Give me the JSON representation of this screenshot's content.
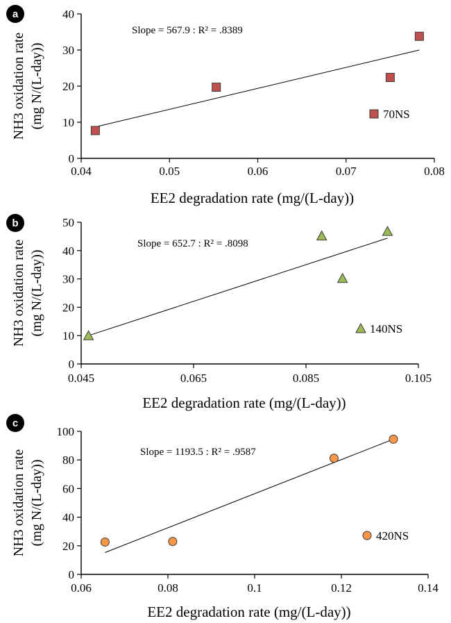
{
  "chart_data": [
    {
      "panel_label": "a",
      "type": "scatter",
      "xlabel": "EE2 degradation rate (mg/(L-day))",
      "ylabel_line1": "NH3 oxidation rate",
      "ylabel_line2": "(mg N/(L-day))",
      "xlim": [
        0.04,
        0.08
      ],
      "ylim": [
        0,
        40
      ],
      "xticks": [
        0.04,
        0.05,
        0.06,
        0.07,
        0.08
      ],
      "xtick_labels": [
        "0.04",
        "0.05",
        "0.06",
        "0.07",
        "0.08"
      ],
      "yticks": [
        0,
        10,
        20,
        30,
        40
      ],
      "ytick_labels": [
        "0",
        "10",
        "20",
        "30",
        "40"
      ],
      "annotation": "Slope = 567.9 : R² = .8389",
      "legend": "70NS",
      "marker": "square",
      "marker_color": "#c0504d",
      "x": [
        0.0416,
        0.0553,
        0.075,
        0.0783
      ],
      "y": [
        7.7,
        19.7,
        22.4,
        33.8
      ],
      "trendline": {
        "x": [
          0.0416,
          0.0783
        ],
        "y": [
          8.7,
          30.0
        ]
      }
    },
    {
      "panel_label": "b",
      "type": "scatter",
      "xlabel": "EE2 degradation rate (mg/(L-day))",
      "ylabel_line1": "NH3 oxidation rate",
      "ylabel_line2": "(mg N/(L-day))",
      "xlim": [
        0.045,
        0.105
      ],
      "ylim": [
        0,
        50
      ],
      "xticks": [
        0.045,
        0.065,
        0.085,
        0.105
      ],
      "xtick_labels": [
        "0.045",
        "0.065",
        "0.085",
        "0.105"
      ],
      "yticks": [
        0,
        10,
        20,
        30,
        40,
        50
      ],
      "ytick_labels": [
        "0",
        "10",
        "20",
        "30",
        "40",
        "50"
      ],
      "annotation": "Slope = 652.7 : R² = .8098",
      "legend": "140NS",
      "marker": "triangle",
      "marker_color": "#9bbb59",
      "x": [
        0.0463,
        0.0878,
        0.0915,
        0.0995
      ],
      "y": [
        10.0,
        45.2,
        30.2,
        46.8
      ],
      "trendline": {
        "x": [
          0.0463,
          0.0995
        ],
        "y": [
          10.0,
          44.4
        ]
      }
    },
    {
      "panel_label": "c",
      "type": "scatter",
      "xlabel": "EE2 degradation rate (mg/(L-day))",
      "ylabel_line1": "NH3 oxidation rate",
      "ylabel_line2": "(mg N/(L-day))",
      "xlim": [
        0.06,
        0.14
      ],
      "ylim": [
        0,
        100
      ],
      "xticks": [
        0.06,
        0.08,
        0.1,
        0.12,
        0.14
      ],
      "xtick_labels": [
        "0.06",
        "0.08",
        "0.1",
        "0.12",
        "0.14"
      ],
      "yticks": [
        0,
        20,
        40,
        60,
        80,
        100
      ],
      "ytick_labels": [
        "0",
        "20",
        "40",
        "60",
        "80",
        "100"
      ],
      "annotation": "Slope = 1193.5 : R² = .9587",
      "legend": "420NS",
      "marker": "circle",
      "marker_color": "#f79646",
      "x": [
        0.0655,
        0.0811,
        0.1183,
        0.132
      ],
      "y": [
        22.6,
        23.0,
        81.2,
        94.5
      ],
      "trendline": {
        "x": [
          0.0655,
          0.132
        ],
        "y": [
          15.3,
          94.5
        ]
      }
    }
  ]
}
